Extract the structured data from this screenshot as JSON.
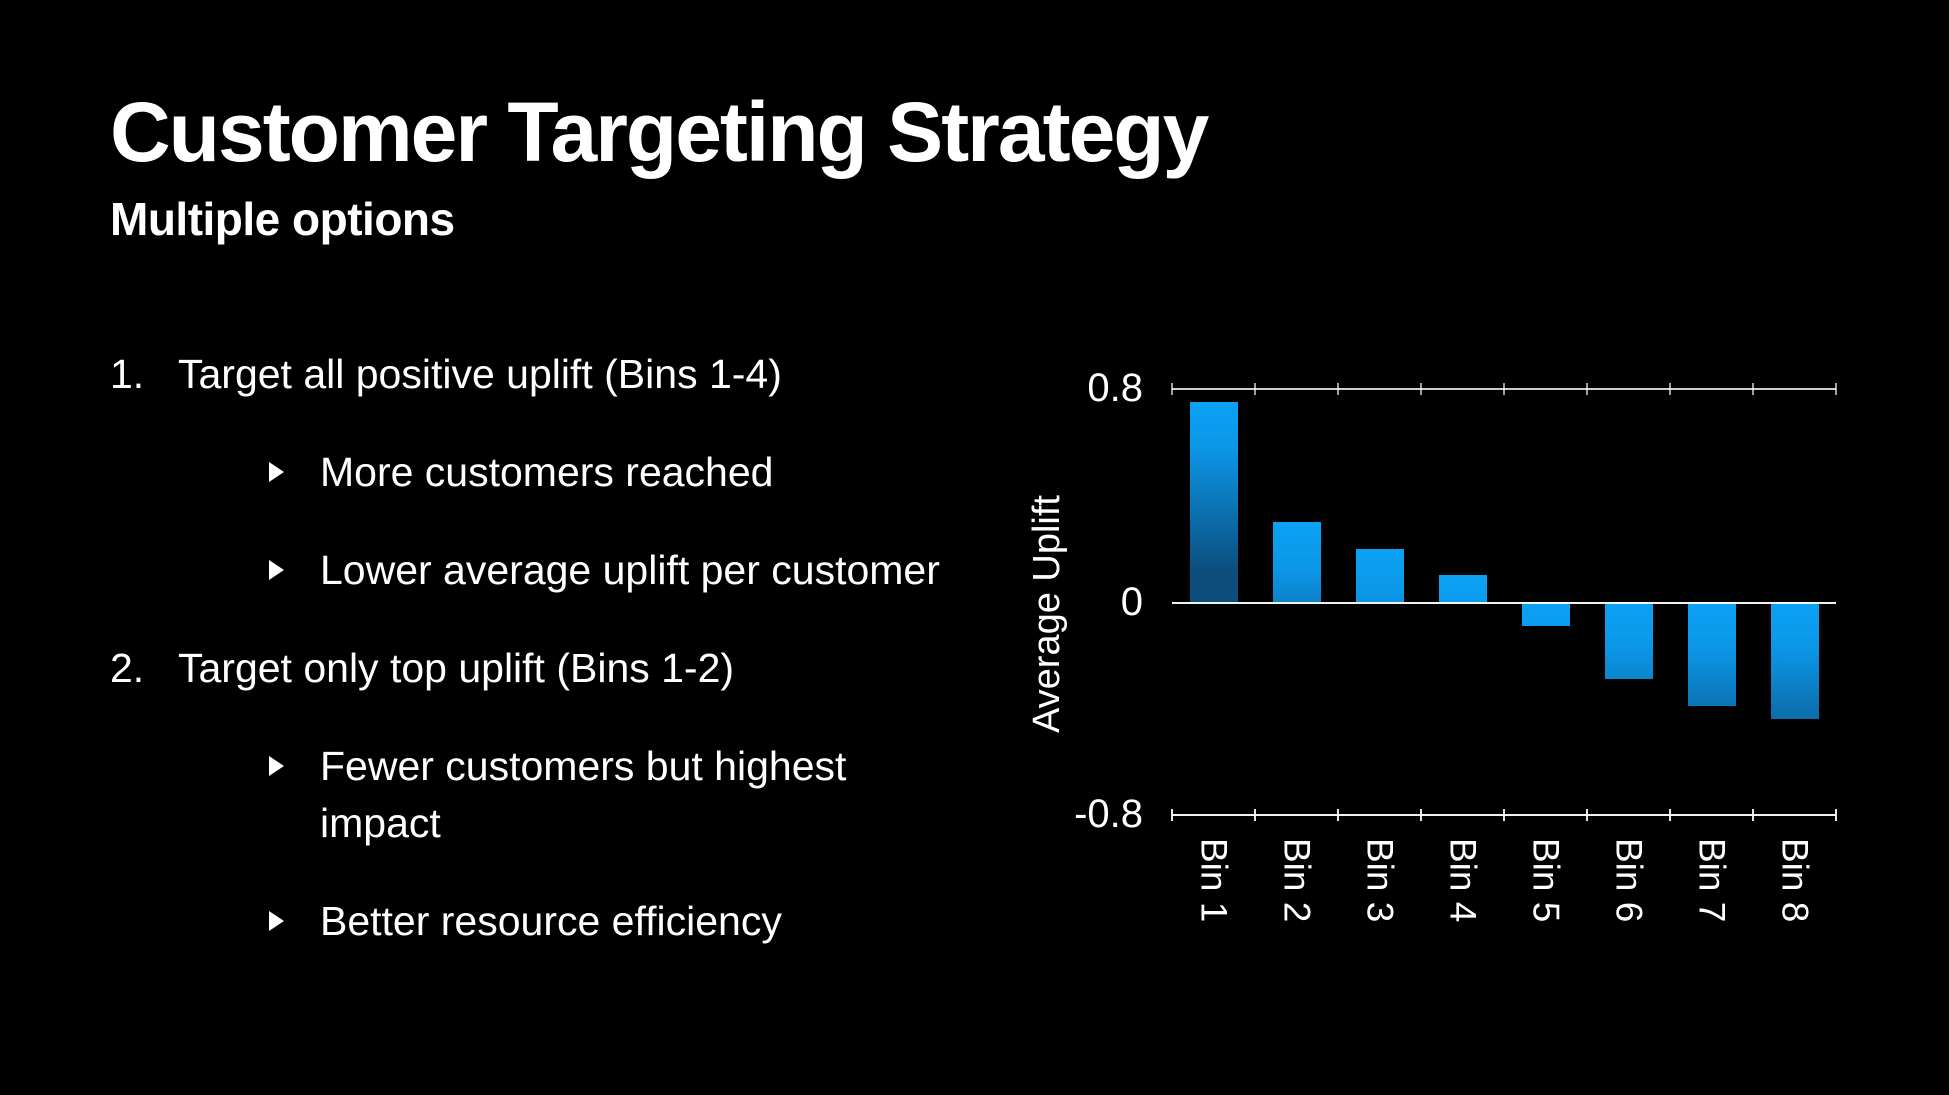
{
  "slide": {
    "title": "Customer Targeting Strategy",
    "subtitle": "Multiple options",
    "options": [
      {
        "number": "1.",
        "label": "Target all positive uplift (Bins 1-4)",
        "points": [
          {
            "lines": [
              "More customers reached"
            ]
          },
          {
            "lines": [
              "Lower average uplift per customer"
            ]
          }
        ]
      },
      {
        "number": "2.",
        "label": "Target only top uplift (Bins 1-2)",
        "points": [
          {
            "lines": [
              "Fewer customers but highest",
              "impact"
            ]
          },
          {
            "lines": [
              "Better resource efficiency"
            ]
          }
        ]
      }
    ]
  },
  "chart_data": {
    "type": "bar",
    "categories": [
      "Bin 1",
      "Bin 2",
      "Bin 3",
      "Bin 4",
      "Bin 5",
      "Bin 6",
      "Bin 7",
      "Bin 8"
    ],
    "values": [
      0.75,
      0.3,
      0.2,
      0.1,
      -0.09,
      -0.29,
      -0.39,
      -0.44
    ],
    "title": "",
    "xlabel": "",
    "ylabel": "Average Uplift",
    "ylim": [
      -0.8,
      0.8
    ],
    "yticks": [
      0.8,
      0,
      -0.8
    ],
    "ytick_labels": [
      "0.8",
      "0",
      "-0.8"
    ],
    "grid": "horizontal rule at 0.8, zero line, axis rule at -0.8, boundary tick marks",
    "legend": "none",
    "bar_color_top": "#0ba2f5",
    "bar_color_bottom": "#0c4d7c"
  },
  "colors": {
    "background": "#000000",
    "text": "#ffffff",
    "window_edge": "#9c9ca0",
    "axis_line": "#f5f5f5"
  }
}
